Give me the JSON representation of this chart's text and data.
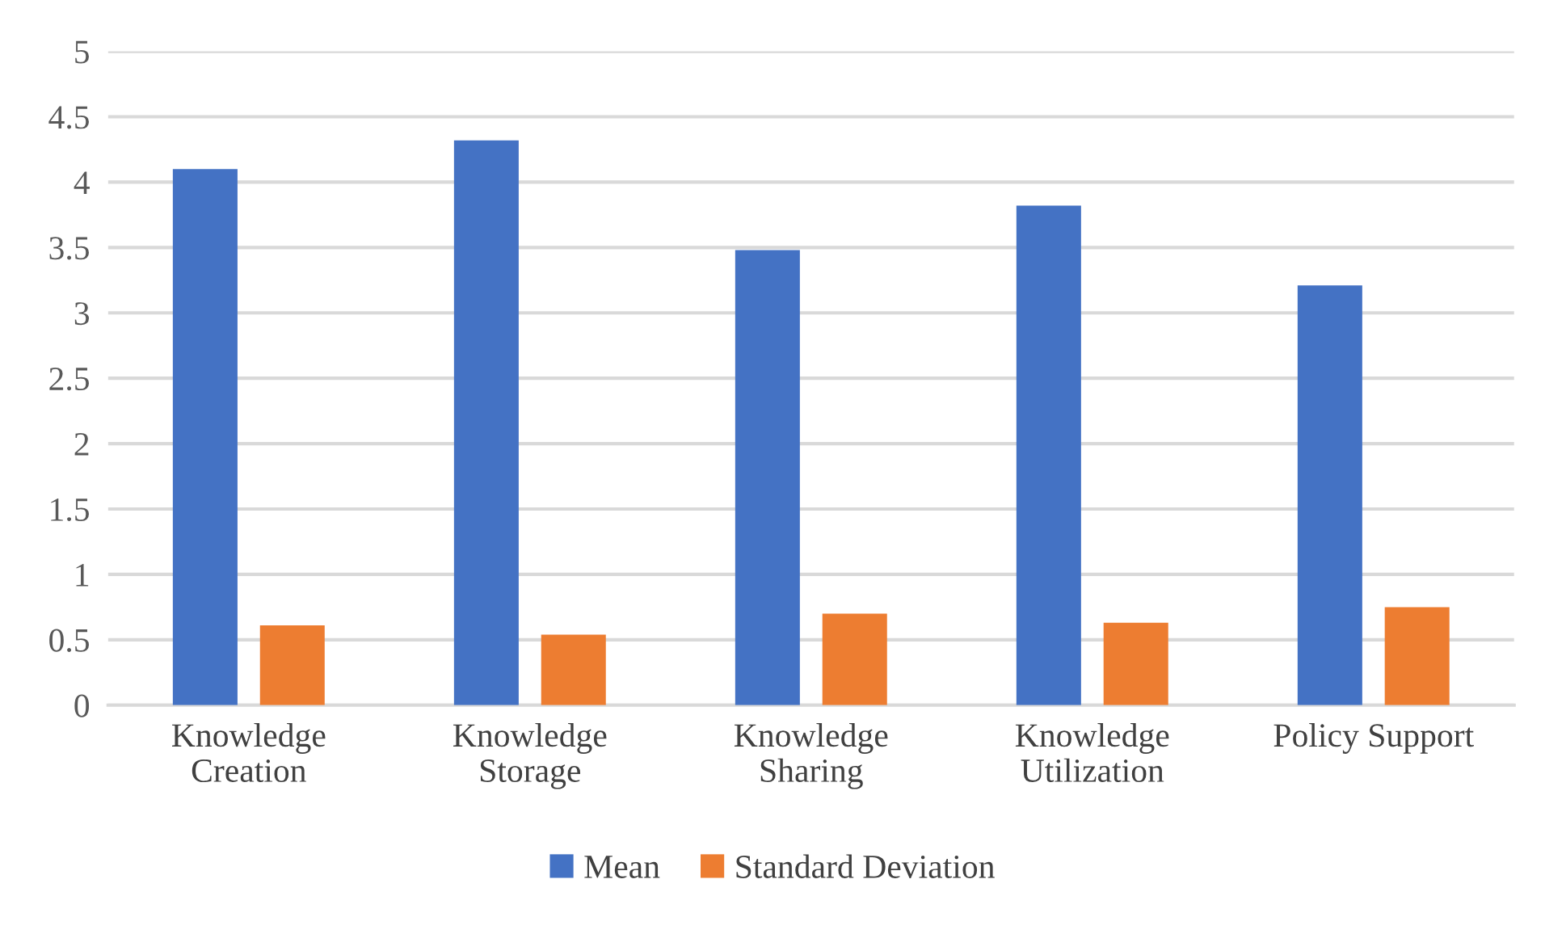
{
  "chart_data": {
    "type": "bar",
    "categories": [
      "Knowledge\nCreation",
      "Knowledge\nStorage",
      "Knowledge\nSharing",
      "Knowledge\nUtilization",
      "Policy Support"
    ],
    "series": [
      {
        "name": "Mean",
        "color": "#4472c4",
        "values": [
          4.1,
          4.32,
          3.48,
          3.82,
          3.21
        ]
      },
      {
        "name": "Standard Deviation",
        "color": "#ed7d31",
        "values": [
          0.61,
          0.54,
          0.7,
          0.63,
          0.75
        ]
      }
    ],
    "ylim": [
      0,
      5
    ],
    "yticks": [
      0,
      0.5,
      1,
      1.5,
      2,
      2.5,
      3,
      3.5,
      4,
      4.5,
      5
    ],
    "grid": "y",
    "legend": "bottom"
  }
}
